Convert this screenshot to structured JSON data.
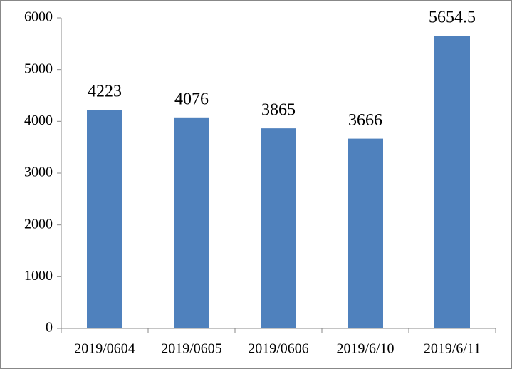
{
  "chart_data": {
    "type": "bar",
    "categories": [
      "2019/0604",
      "2019/0605",
      "2019/0606",
      "2019/6/10",
      "2019/6/11"
    ],
    "values": [
      4223,
      4076,
      3865,
      3666,
      5654.5
    ],
    "color": "#4f81bd",
    "ylim": [
      0,
      6000
    ],
    "yticks": [
      0,
      1000,
      2000,
      3000,
      4000,
      5000,
      6000
    ],
    "grid": false
  }
}
